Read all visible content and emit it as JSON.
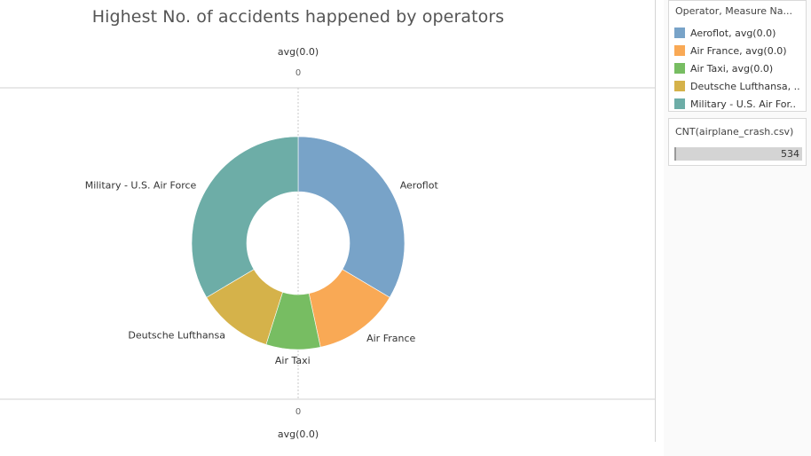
{
  "title": "Highest No. of accidents happened by operators",
  "axis": {
    "top_caption": "avg(0.0)",
    "top_tick": "0",
    "bottom_tick": "0",
    "bottom_caption": "avg(0.0)"
  },
  "legend": {
    "title": "Operator, Measure Na...",
    "items": [
      {
        "label": "Aeroflot, avg(0.0)",
        "color": "#78a3c8"
      },
      {
        "label": "Air France, avg(0.0)",
        "color": "#f9a955"
      },
      {
        "label": "Air Taxi, avg(0.0)",
        "color": "#77bd62"
      },
      {
        "label": "Deutsche Lufthansa, ..",
        "color": "#d5b24a"
      },
      {
        "label": "Military - U.S. Air For..",
        "color": "#6dada7"
      }
    ]
  },
  "size_legend": {
    "title": "CNT(airplane_crash.csv)",
    "value": "534"
  },
  "chart_data": {
    "type": "pie",
    "style": "donut",
    "title": "Highest No. of accidents happened by operators",
    "slices": [
      {
        "name": "Aeroflot",
        "value": 179,
        "color": "#78a3c8"
      },
      {
        "name": "Air France",
        "value": 70,
        "color": "#f9a955"
      },
      {
        "name": "Air Taxi",
        "value": 44,
        "color": "#77bd62"
      },
      {
        "name": "Deutsche Lufthansa",
        "value": 62,
        "color": "#d5b24a"
      },
      {
        "name": "Military - U.S. Air Force",
        "value": 179,
        "color": "#6dada7"
      }
    ],
    "total": 534
  }
}
